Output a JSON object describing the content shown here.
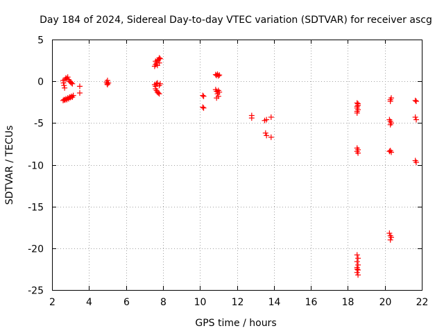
{
  "chart_data": {
    "type": "scatter",
    "title": "Day 184 of 2024, Sidereal Day-to-day VTEC variation (SDTVAR) for receiver ascg",
    "xlabel": "GPS time / hours",
    "ylabel": "SDTVAR / TECUs",
    "xlim": [
      2,
      22
    ],
    "ylim": [
      -25,
      5
    ],
    "xticks": [
      2,
      4,
      6,
      8,
      10,
      12,
      14,
      16,
      18,
      20,
      22
    ],
    "yticks": [
      5,
      0,
      -5,
      -10,
      -15,
      -20,
      -25
    ],
    "grid": true,
    "marker": "+",
    "color": "#ff0000",
    "series": [
      {
        "name": "SDTVAR",
        "points": [
          [
            2.6,
            -2.3
          ],
          [
            2.65,
            -2.2
          ],
          [
            2.7,
            -2.25
          ],
          [
            2.75,
            -2.1
          ],
          [
            2.8,
            -2.2
          ],
          [
            2.85,
            -2.0
          ],
          [
            2.9,
            -2.1
          ],
          [
            2.95,
            -1.9
          ],
          [
            3.0,
            -1.95
          ],
          [
            3.05,
            -1.8
          ],
          [
            3.1,
            -1.9
          ],
          [
            3.15,
            -1.7
          ],
          [
            2.6,
            0.1
          ],
          [
            2.62,
            -0.2
          ],
          [
            2.65,
            -0.5
          ],
          [
            2.68,
            -0.8
          ],
          [
            2.7,
            0.2
          ],
          [
            2.75,
            0.4
          ],
          [
            2.8,
            0.3
          ],
          [
            2.85,
            0.5
          ],
          [
            2.9,
            0.2
          ],
          [
            2.95,
            0.0
          ],
          [
            3.0,
            -0.1
          ],
          [
            3.05,
            -0.2
          ],
          [
            3.1,
            -0.3
          ],
          [
            3.5,
            -0.6
          ],
          [
            3.5,
            -1.4
          ],
          [
            4.95,
            -0.1
          ],
          [
            5.0,
            0.1
          ],
          [
            5.0,
            -0.4
          ],
          [
            5.05,
            -0.2
          ],
          [
            4.98,
            -0.3
          ],
          [
            7.55,
            1.8
          ],
          [
            7.6,
            2.0
          ],
          [
            7.6,
            2.4
          ],
          [
            7.65,
            2.2
          ],
          [
            7.7,
            2.5
          ],
          [
            7.7,
            1.9
          ],
          [
            7.75,
            2.6
          ],
          [
            7.8,
            2.8
          ],
          [
            7.8,
            2.2
          ],
          [
            7.85,
            2.7
          ],
          [
            7.55,
            -0.4
          ],
          [
            7.6,
            -0.6
          ],
          [
            7.6,
            -0.9
          ],
          [
            7.65,
            -1.1
          ],
          [
            7.65,
            -0.3
          ],
          [
            7.7,
            -1.3
          ],
          [
            7.7,
            -0.2
          ],
          [
            7.75,
            -1.4
          ],
          [
            7.8,
            -0.5
          ],
          [
            7.8,
            -1.5
          ],
          [
            7.85,
            -0.3
          ],
          [
            10.15,
            -1.7
          ],
          [
            10.2,
            -1.8
          ],
          [
            10.15,
            -3.1
          ],
          [
            10.2,
            -3.2
          ],
          [
            10.85,
            0.8
          ],
          [
            10.9,
            0.7
          ],
          [
            10.95,
            0.85
          ],
          [
            11.0,
            0.65
          ],
          [
            11.05,
            0.75
          ],
          [
            10.85,
            -1.0
          ],
          [
            10.9,
            -1.2
          ],
          [
            10.95,
            -1.5
          ],
          [
            11.0,
            -1.8
          ],
          [
            11.05,
            -1.3
          ],
          [
            10.9,
            -2.0
          ],
          [
            11.0,
            -1.1
          ],
          [
            12.8,
            -4.1
          ],
          [
            12.8,
            -4.4
          ],
          [
            13.5,
            -4.7
          ],
          [
            13.6,
            -4.6
          ],
          [
            13.55,
            -6.2
          ],
          [
            13.6,
            -6.5
          ],
          [
            13.85,
            -4.3
          ],
          [
            13.85,
            -6.7
          ],
          [
            18.5,
            -2.6
          ],
          [
            18.55,
            -2.7
          ],
          [
            18.5,
            -3.0
          ],
          [
            18.5,
            -3.2
          ],
          [
            18.55,
            -3.4
          ],
          [
            18.5,
            -3.6
          ],
          [
            18.55,
            -2.9
          ],
          [
            18.5,
            -3.8
          ],
          [
            18.5,
            -8.0
          ],
          [
            18.55,
            -8.2
          ],
          [
            18.5,
            -8.4
          ],
          [
            18.55,
            -8.6
          ],
          [
            18.5,
            -20.8
          ],
          [
            18.55,
            -21.2
          ],
          [
            18.5,
            -21.6
          ],
          [
            18.55,
            -22.0
          ],
          [
            18.5,
            -22.3
          ],
          [
            18.55,
            -22.6
          ],
          [
            18.5,
            -22.9
          ],
          [
            18.55,
            -23.2
          ],
          [
            18.5,
            -22.5
          ],
          [
            20.3,
            -2.2
          ],
          [
            20.35,
            -2.0
          ],
          [
            20.3,
            -2.4
          ],
          [
            20.25,
            -4.6
          ],
          [
            20.3,
            -4.8
          ],
          [
            20.35,
            -5.0
          ],
          [
            20.3,
            -5.2
          ],
          [
            20.3,
            -8.3
          ],
          [
            20.35,
            -8.5
          ],
          [
            20.25,
            -8.4
          ],
          [
            20.25,
            -18.2
          ],
          [
            20.3,
            -18.5
          ],
          [
            20.35,
            -18.7
          ],
          [
            20.3,
            -19.0
          ],
          [
            21.65,
            -2.3
          ],
          [
            21.7,
            -2.4
          ],
          [
            21.65,
            -4.3
          ],
          [
            21.7,
            -4.6
          ],
          [
            21.65,
            -9.5
          ],
          [
            21.7,
            -9.7
          ]
        ]
      }
    ]
  }
}
